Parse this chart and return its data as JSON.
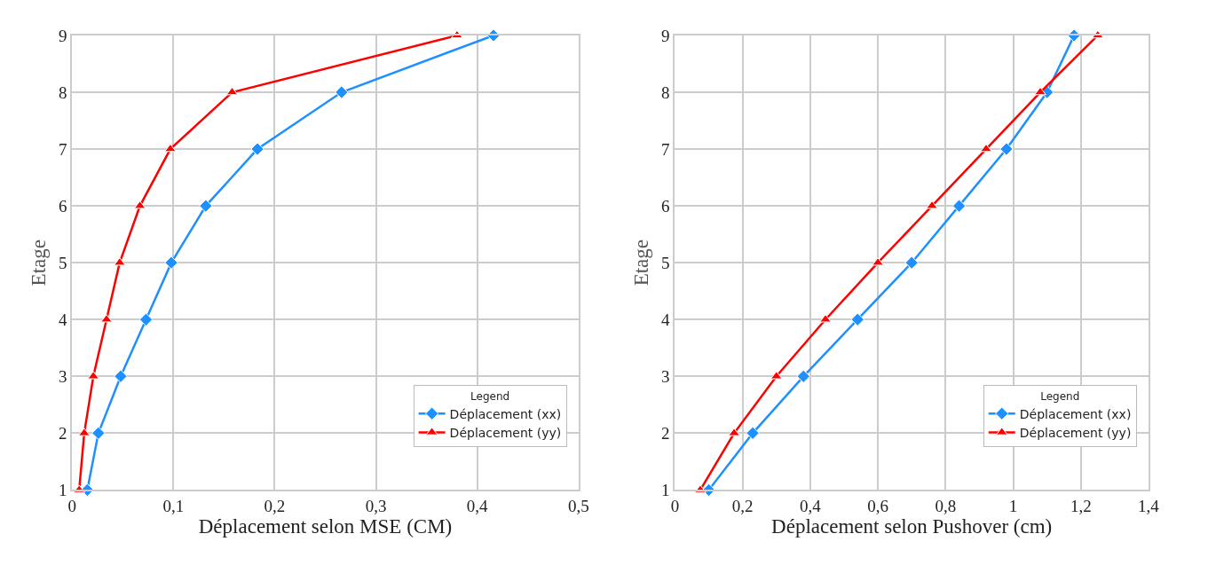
{
  "chart_data": [
    {
      "type": "line",
      "xlabel": "Déplacement selon MSE (CM)",
      "ylabel": "Etage",
      "legend_title": "Legend",
      "legend": "bottom right",
      "grid": true,
      "xlim": [
        0,
        0.5
      ],
      "xticks": [
        0,
        {
          "value": 0.1,
          "label": "0,1"
        },
        {
          "value": 0.2,
          "label": "0,2"
        },
        {
          "value": 0.3,
          "label": "0,3"
        },
        {
          "value": 0.4,
          "label": "0,4"
        },
        {
          "value": 0.5,
          "label": "0,5"
        }
      ],
      "ylim": [
        1,
        9
      ],
      "yticks": [
        1,
        2,
        3,
        4,
        5,
        6,
        7,
        8,
        9
      ],
      "series": [
        {
          "name": "Déplacement (xx)",
          "color": "#1e90ff",
          "marker": "diamond",
          "x": [
            0.015,
            0.026,
            0.048,
            0.073,
            0.098,
            0.132,
            0.183,
            0.266,
            0.416
          ],
          "values": [
            1,
            2,
            3,
            4,
            5,
            6,
            7,
            8,
            9
          ]
        },
        {
          "name": "Déplacement (yy)",
          "color": "#ff0000",
          "marker": "triangle",
          "x": [
            0.007,
            0.012,
            0.021,
            0.034,
            0.047,
            0.067,
            0.097,
            0.158,
            0.38
          ],
          "values": [
            1,
            2,
            3,
            4,
            5,
            6,
            7,
            8,
            9
          ]
        }
      ]
    },
    {
      "type": "line",
      "xlabel": "Déplacement selon Pushover (cm)",
      "ylabel": "Etage",
      "legend_title": "Legend",
      "legend": "bottom right",
      "grid": true,
      "xlim": [
        0,
        1.4
      ],
      "xticks": [
        0,
        {
          "value": 0.2,
          "label": "0,2"
        },
        {
          "value": 0.4,
          "label": "0,4"
        },
        {
          "value": 0.6,
          "label": "0,6"
        },
        {
          "value": 0.8,
          "label": "0,8"
        },
        1,
        {
          "value": 1.2,
          "label": "1,2"
        },
        {
          "value": 1.4,
          "label": "1,4"
        }
      ],
      "ylim": [
        1,
        9
      ],
      "yticks": [
        1,
        2,
        3,
        4,
        5,
        6,
        7,
        8,
        9
      ],
      "series": [
        {
          "name": "Déplacement (xx)",
          "color": "#1e90ff",
          "marker": "diamond",
          "x": [
            0.1,
            0.23,
            0.38,
            0.54,
            0.7,
            0.84,
            0.98,
            1.1,
            1.18
          ],
          "values": [
            1,
            2,
            3,
            4,
            5,
            6,
            7,
            8,
            9
          ]
        },
        {
          "name": "Déplacement (yy)",
          "color": "#ff0000",
          "marker": "triangle",
          "x": [
            0.075,
            0.175,
            0.3,
            0.445,
            0.6,
            0.76,
            0.92,
            1.08,
            1.25
          ],
          "values": [
            1,
            2,
            3,
            4,
            5,
            6,
            7,
            8,
            9
          ]
        }
      ]
    }
  ]
}
